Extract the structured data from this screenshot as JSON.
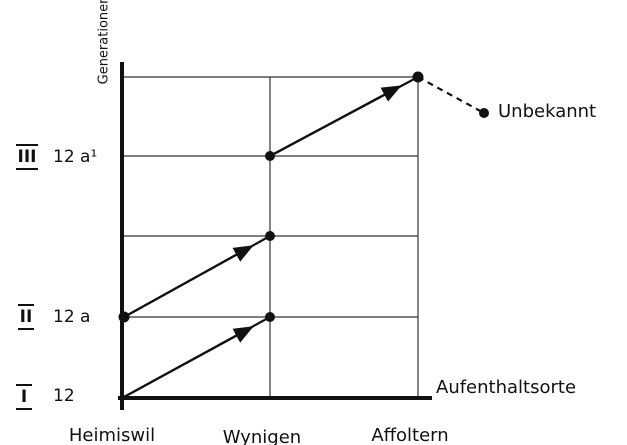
{
  "axes": {
    "y_label": "Generationen",
    "x_label": "Aufenthaltsorte"
  },
  "generations": [
    {
      "numeral": "I",
      "code": "12"
    },
    {
      "numeral": "II",
      "code": "12 a"
    },
    {
      "numeral": "III",
      "code": "12 a¹"
    }
  ],
  "places": [
    "Heimiswil",
    "Wynigen",
    "Affoltern"
  ],
  "unknown_label": "Unbekannt"
}
